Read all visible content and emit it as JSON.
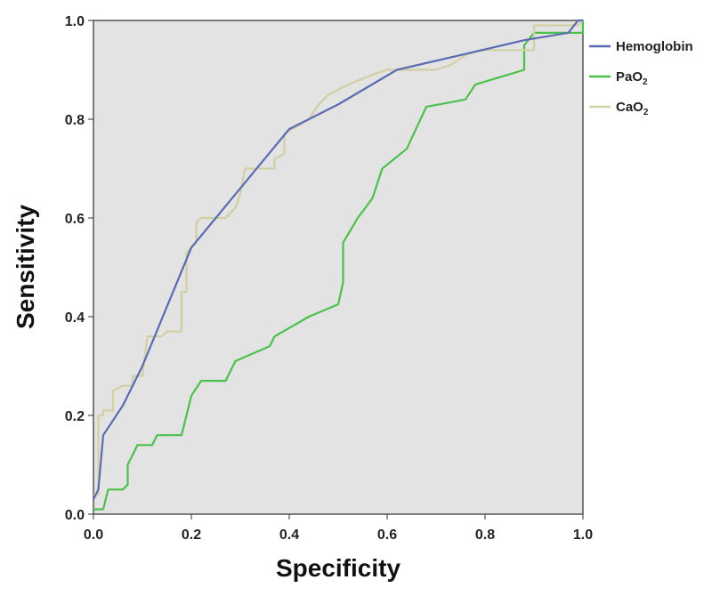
{
  "chart_data": {
    "type": "line",
    "xlabel": "Specificity",
    "ylabel": "Sensitivity",
    "xlim": [
      0.0,
      1.0
    ],
    "ylim": [
      0.0,
      1.0
    ],
    "x_ticks": [
      "0.0",
      "0.2",
      "0.4",
      "0.6",
      "0.8",
      "1.0"
    ],
    "y_ticks": [
      "0.0",
      "0.2",
      "0.4",
      "0.6",
      "0.8",
      "1.0"
    ],
    "grid": false,
    "legend_position": "right",
    "background_color": "#e3e3e3",
    "series": [
      {
        "name": "Hemoglobin",
        "color": "#5b6bb3",
        "points": [
          [
            0.0,
            0.03
          ],
          [
            0.01,
            0.05
          ],
          [
            0.02,
            0.16
          ],
          [
            0.06,
            0.22
          ],
          [
            0.1,
            0.3
          ],
          [
            0.2,
            0.54
          ],
          [
            0.3,
            0.66
          ],
          [
            0.4,
            0.78
          ],
          [
            0.5,
            0.83
          ],
          [
            0.62,
            0.9
          ],
          [
            0.75,
            0.93
          ],
          [
            0.88,
            0.96
          ],
          [
            0.97,
            0.975
          ],
          [
            0.99,
            1.0
          ],
          [
            1.0,
            1.0
          ]
        ]
      },
      {
        "name": "PaO2",
        "name_base": "PaO",
        "name_subscript": "2",
        "color": "#4cc04c",
        "points": [
          [
            0.0,
            0.01
          ],
          [
            0.02,
            0.01
          ],
          [
            0.03,
            0.05
          ],
          [
            0.06,
            0.05
          ],
          [
            0.07,
            0.06
          ],
          [
            0.07,
            0.1
          ],
          [
            0.08,
            0.12
          ],
          [
            0.09,
            0.14
          ],
          [
            0.12,
            0.14
          ],
          [
            0.13,
            0.16
          ],
          [
            0.18,
            0.16
          ],
          [
            0.19,
            0.2
          ],
          [
            0.2,
            0.24
          ],
          [
            0.22,
            0.27
          ],
          [
            0.27,
            0.27
          ],
          [
            0.29,
            0.31
          ],
          [
            0.36,
            0.34
          ],
          [
            0.37,
            0.36
          ],
          [
            0.44,
            0.4
          ],
          [
            0.5,
            0.425
          ],
          [
            0.51,
            0.47
          ],
          [
            0.51,
            0.55
          ],
          [
            0.54,
            0.6
          ],
          [
            0.57,
            0.64
          ],
          [
            0.59,
            0.7
          ],
          [
            0.64,
            0.74
          ],
          [
            0.68,
            0.825
          ],
          [
            0.76,
            0.84
          ],
          [
            0.78,
            0.87
          ],
          [
            0.88,
            0.9
          ],
          [
            0.88,
            0.95
          ],
          [
            0.9,
            0.975
          ],
          [
            1.0,
            0.975
          ],
          [
            1.0,
            1.0
          ]
        ]
      },
      {
        "name": "CaO2",
        "name_base": "CaO",
        "name_subscript": "2",
        "color": "#d2cfa5",
        "points": [
          [
            0.0,
            0.04
          ],
          [
            0.01,
            0.04
          ],
          [
            0.01,
            0.2
          ],
          [
            0.02,
            0.2
          ],
          [
            0.02,
            0.21
          ],
          [
            0.04,
            0.21
          ],
          [
            0.04,
            0.25
          ],
          [
            0.06,
            0.26
          ],
          [
            0.08,
            0.26
          ],
          [
            0.08,
            0.28
          ],
          [
            0.1,
            0.28
          ],
          [
            0.11,
            0.36
          ],
          [
            0.14,
            0.36
          ],
          [
            0.15,
            0.37
          ],
          [
            0.18,
            0.37
          ],
          [
            0.18,
            0.45
          ],
          [
            0.19,
            0.45
          ],
          [
            0.19,
            0.53
          ],
          [
            0.21,
            0.55
          ],
          [
            0.21,
            0.59
          ],
          [
            0.22,
            0.6
          ],
          [
            0.27,
            0.6
          ],
          [
            0.28,
            0.61
          ],
          [
            0.29,
            0.62
          ],
          [
            0.3,
            0.65
          ],
          [
            0.31,
            0.7
          ],
          [
            0.37,
            0.7
          ],
          [
            0.37,
            0.72
          ],
          [
            0.39,
            0.73
          ],
          [
            0.39,
            0.77
          ],
          [
            0.44,
            0.8
          ],
          [
            0.46,
            0.83
          ],
          [
            0.48,
            0.85
          ],
          [
            0.5,
            0.86
          ],
          [
            0.52,
            0.87
          ],
          [
            0.57,
            0.89
          ],
          [
            0.6,
            0.9
          ],
          [
            0.7,
            0.9
          ],
          [
            0.73,
            0.91
          ],
          [
            0.76,
            0.93
          ],
          [
            0.79,
            0.94
          ],
          [
            0.9,
            0.94
          ],
          [
            0.9,
            0.99
          ],
          [
            0.99,
            0.99
          ],
          [
            1.0,
            1.0
          ]
        ]
      }
    ]
  }
}
